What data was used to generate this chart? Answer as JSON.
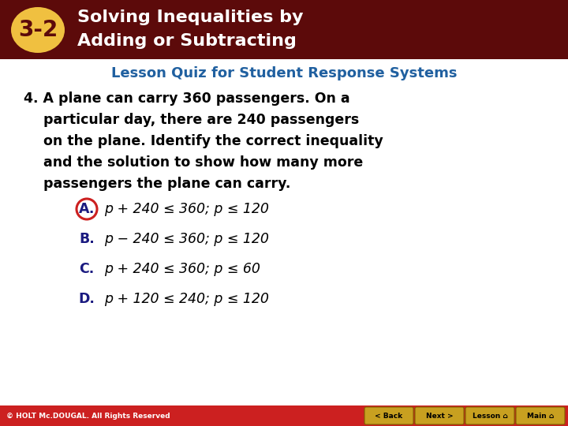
{
  "header_bg_color": "#5C0A0A",
  "header_text_color": "#FFFFFF",
  "badge_bg_color": "#F0C040",
  "badge_text": "3-2",
  "header_title_line1": "Solving Inequalities by",
  "header_title_line2": "Adding or Subtracting",
  "subtitle": "Lesson Quiz for Student Response Systems",
  "subtitle_color": "#2060A0",
  "question_number": "4.",
  "question_text_line1": "A plane can carry 360 passengers. On a",
  "question_text_line2": "particular day, there are 240 passengers",
  "question_text_line3": "on the plane. Identify the correct inequality",
  "question_text_line4": "and the solution to show how many more",
  "question_text_line5": "passengers the plane can carry.",
  "question_color": "#000000",
  "answer_A_label": "A.",
  "answer_A_text": "p + 240 ≤ 360; p ≤ 120",
  "answer_B_label": "B.",
  "answer_B_text": "p − 240 ≤ 360; p ≤ 120",
  "answer_C_label": "C.",
  "answer_C_text": "p + 240 ≤ 360; p ≤ 60",
  "answer_D_label": "D.",
  "answer_D_text": "p + 120 ≤ 240; p ≤ 120",
  "answer_color": "#000000",
  "answer_label_color": "#1A1A80",
  "correct_answer": "A",
  "circle_color": "#CC2020",
  "footer_bg_color": "#CC2020",
  "footer_text": "© HOLT Mc.DOUGAL. All Rights Reserved",
  "footer_text_color": "#FFFFFF",
  "bg_color": "#FFFFFF",
  "nav_button_color": "#C8A020",
  "nav_buttons": [
    "< Back",
    "Next >",
    "Lesson ⌂",
    "Main ⌂"
  ]
}
